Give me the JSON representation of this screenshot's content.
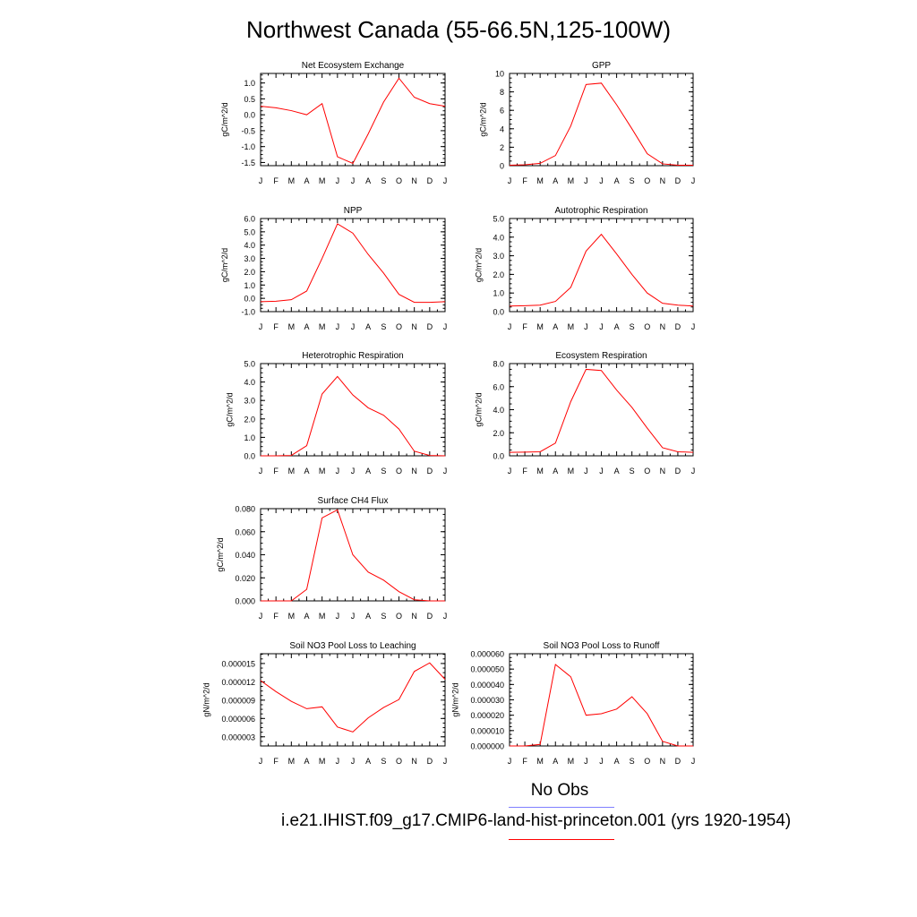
{
  "main_title": "Northwest Canada (55-66.5N,125-100W)",
  "legend": {
    "obs_label": "No Obs",
    "obs_color": "#8080ff",
    "case_label": "i.e21.IHIST.f09_g17.CMIP6-land-hist-princeton.001 (yrs 1920-1954)",
    "case_color": "#ff0000"
  },
  "chart_data": [
    {
      "type": "line",
      "title": "Net Ecosystem Exchange",
      "ylabel": "gC/m^2/d",
      "categories": [
        "J",
        "F",
        "M",
        "A",
        "M",
        "J",
        "J",
        "A",
        "S",
        "O",
        "N",
        "D",
        "J"
      ],
      "ylim": [
        -1.6,
        1.3
      ],
      "yticks": [
        -1.5,
        -1.0,
        -0.5,
        0.0,
        0.5,
        1.0
      ],
      "ytick_labels": [
        "-1.5",
        "-1.0",
        "-0.5",
        "0.0",
        "0.5",
        "1.0"
      ],
      "series": [
        {
          "color": "#ff0000",
          "values": [
            0.27,
            0.22,
            0.13,
            0.0,
            0.35,
            -1.32,
            -1.53,
            -0.6,
            0.4,
            1.15,
            0.55,
            0.35,
            0.27
          ]
        }
      ]
    },
    {
      "type": "line",
      "title": "GPP",
      "ylabel": "gC/m^2/d",
      "categories": [
        "J",
        "F",
        "M",
        "A",
        "M",
        "J",
        "J",
        "A",
        "S",
        "O",
        "N",
        "D",
        "J"
      ],
      "ylim": [
        0,
        10
      ],
      "yticks": [
        0,
        2,
        4,
        6,
        8,
        10
      ],
      "ytick_labels": [
        "0",
        "2",
        "4",
        "6",
        "8",
        "10"
      ],
      "series": [
        {
          "color": "#ff0000",
          "values": [
            0.05,
            0.1,
            0.25,
            1.1,
            4.3,
            8.8,
            8.95,
            6.6,
            4.0,
            1.3,
            0.2,
            0.05,
            0.05
          ]
        }
      ]
    },
    {
      "type": "line",
      "title": "NPP",
      "ylabel": "gC/m^2/d",
      "categories": [
        "J",
        "F",
        "M",
        "A",
        "M",
        "J",
        "J",
        "A",
        "S",
        "O",
        "N",
        "D",
        "J"
      ],
      "ylim": [
        -1,
        6
      ],
      "yticks": [
        -1,
        0,
        1,
        2,
        3,
        4,
        5,
        6
      ],
      "ytick_labels": [
        "-1.0",
        "0.0",
        "1.0",
        "2.0",
        "3.0",
        "4.0",
        "5.0",
        "6.0"
      ],
      "series": [
        {
          "color": "#ff0000",
          "values": [
            -0.25,
            -0.22,
            -0.1,
            0.55,
            3.0,
            5.6,
            4.9,
            3.3,
            1.9,
            0.3,
            -0.3,
            -0.3,
            -0.25
          ]
        }
      ]
    },
    {
      "type": "line",
      "title": "Autotrophic Respiration",
      "ylabel": "gC/m^2/d",
      "categories": [
        "J",
        "F",
        "M",
        "A",
        "M",
        "J",
        "J",
        "A",
        "S",
        "O",
        "N",
        "D",
        "J"
      ],
      "ylim": [
        0,
        5
      ],
      "yticks": [
        0,
        1,
        2,
        3,
        4,
        5
      ],
      "ytick_labels": [
        "0.0",
        "1.0",
        "2.0",
        "3.0",
        "4.0",
        "5.0"
      ],
      "series": [
        {
          "color": "#ff0000",
          "values": [
            0.3,
            0.32,
            0.35,
            0.55,
            1.3,
            3.25,
            4.15,
            3.1,
            2.0,
            1.0,
            0.45,
            0.35,
            0.3
          ]
        }
      ]
    },
    {
      "type": "line",
      "title": "Heterotrophic Respiration",
      "ylabel": "gC/m^2/d",
      "categories": [
        "J",
        "F",
        "M",
        "A",
        "M",
        "J",
        "J",
        "A",
        "S",
        "O",
        "N",
        "D",
        "J"
      ],
      "ylim": [
        0,
        5
      ],
      "yticks": [
        0,
        1,
        2,
        3,
        4,
        5
      ],
      "ytick_labels": [
        "0.0",
        "1.0",
        "2.0",
        "3.0",
        "4.0",
        "5.0"
      ],
      "series": [
        {
          "color": "#ff0000",
          "values": [
            0.0,
            0.0,
            0.02,
            0.55,
            3.35,
            4.3,
            3.3,
            2.6,
            2.2,
            1.45,
            0.25,
            0.02,
            0.0
          ]
        }
      ]
    },
    {
      "type": "line",
      "title": "Ecosystem Respiration",
      "ylabel": "gC/m^2/d",
      "categories": [
        "J",
        "F",
        "M",
        "A",
        "M",
        "J",
        "J",
        "A",
        "S",
        "O",
        "N",
        "D",
        "J"
      ],
      "ylim": [
        0,
        8
      ],
      "yticks": [
        0,
        2,
        4,
        6,
        8
      ],
      "ytick_labels": [
        "0.0",
        "2.0",
        "4.0",
        "6.0",
        "8.0"
      ],
      "series": [
        {
          "color": "#ff0000",
          "values": [
            0.3,
            0.32,
            0.35,
            1.1,
            4.7,
            7.5,
            7.4,
            5.7,
            4.2,
            2.4,
            0.7,
            0.35,
            0.3
          ]
        }
      ]
    },
    {
      "type": "line",
      "title": "Surface CH4 Flux",
      "ylabel": "gC/m^2/d",
      "categories": [
        "J",
        "F",
        "M",
        "A",
        "M",
        "J",
        "J",
        "A",
        "S",
        "O",
        "N",
        "D",
        "J"
      ],
      "ylim": [
        0,
        0.08
      ],
      "yticks": [
        0,
        0.02,
        0.04,
        0.06,
        0.08
      ],
      "ytick_labels": [
        "0.000",
        "0.020",
        "0.040",
        "0.060",
        "0.080"
      ],
      "series": [
        {
          "color": "#ff0000",
          "values": [
            0.0,
            0.0,
            0.0,
            0.01,
            0.072,
            0.079,
            0.04,
            0.025,
            0.018,
            0.008,
            0.001,
            0.0,
            0.0
          ]
        }
      ]
    },
    {
      "type": "line",
      "title": "Soil NO3 Pool Loss to Leaching",
      "ylabel": "gN/m^2/d",
      "categories": [
        "J",
        "F",
        "M",
        "A",
        "M",
        "J",
        "J",
        "A",
        "S",
        "O",
        "N",
        "D",
        "J"
      ],
      "ylim": [
        1.5e-06,
        1.66e-05
      ],
      "yticks": [
        3e-06,
        6e-06,
        9e-06,
        1.2e-05,
        1.5e-05
      ],
      "ytick_labels": [
        "0.000003",
        "0.000006",
        "0.000009",
        "0.000012",
        "0.000015"
      ],
      "series": [
        {
          "color": "#ff0000",
          "values": [
            1.22e-05,
            1.04e-05,
            8.8e-06,
            7.6e-06,
            7.9e-06,
            4.6e-06,
            3.8e-06,
            6.1e-06,
            7.8e-06,
            9.1e-06,
            1.37e-05,
            1.51e-05,
            1.24e-05
          ]
        }
      ]
    },
    {
      "type": "line",
      "title": "Soil NO3 Pool Loss to Runoff",
      "ylabel": "gN/m^2/d",
      "categories": [
        "J",
        "F",
        "M",
        "A",
        "M",
        "J",
        "J",
        "A",
        "S",
        "O",
        "N",
        "D",
        "J"
      ],
      "ylim": [
        0,
        6e-05
      ],
      "yticks": [
        0,
        1e-05,
        2e-05,
        3e-05,
        4e-05,
        5e-05,
        6e-05
      ],
      "ytick_labels": [
        "0.000000",
        "0.000010",
        "0.000020",
        "0.000030",
        "0.000040",
        "0.000050",
        "0.000060"
      ],
      "series": [
        {
          "color": "#ff0000",
          "values": [
            0.0,
            0.0,
            1e-06,
            5.3e-05,
            4.5e-05,
            2e-05,
            2.1e-05,
            2.4e-05,
            3.2e-05,
            2.1e-05,
            3e-06,
            0.0,
            0.0
          ]
        }
      ]
    }
  ]
}
